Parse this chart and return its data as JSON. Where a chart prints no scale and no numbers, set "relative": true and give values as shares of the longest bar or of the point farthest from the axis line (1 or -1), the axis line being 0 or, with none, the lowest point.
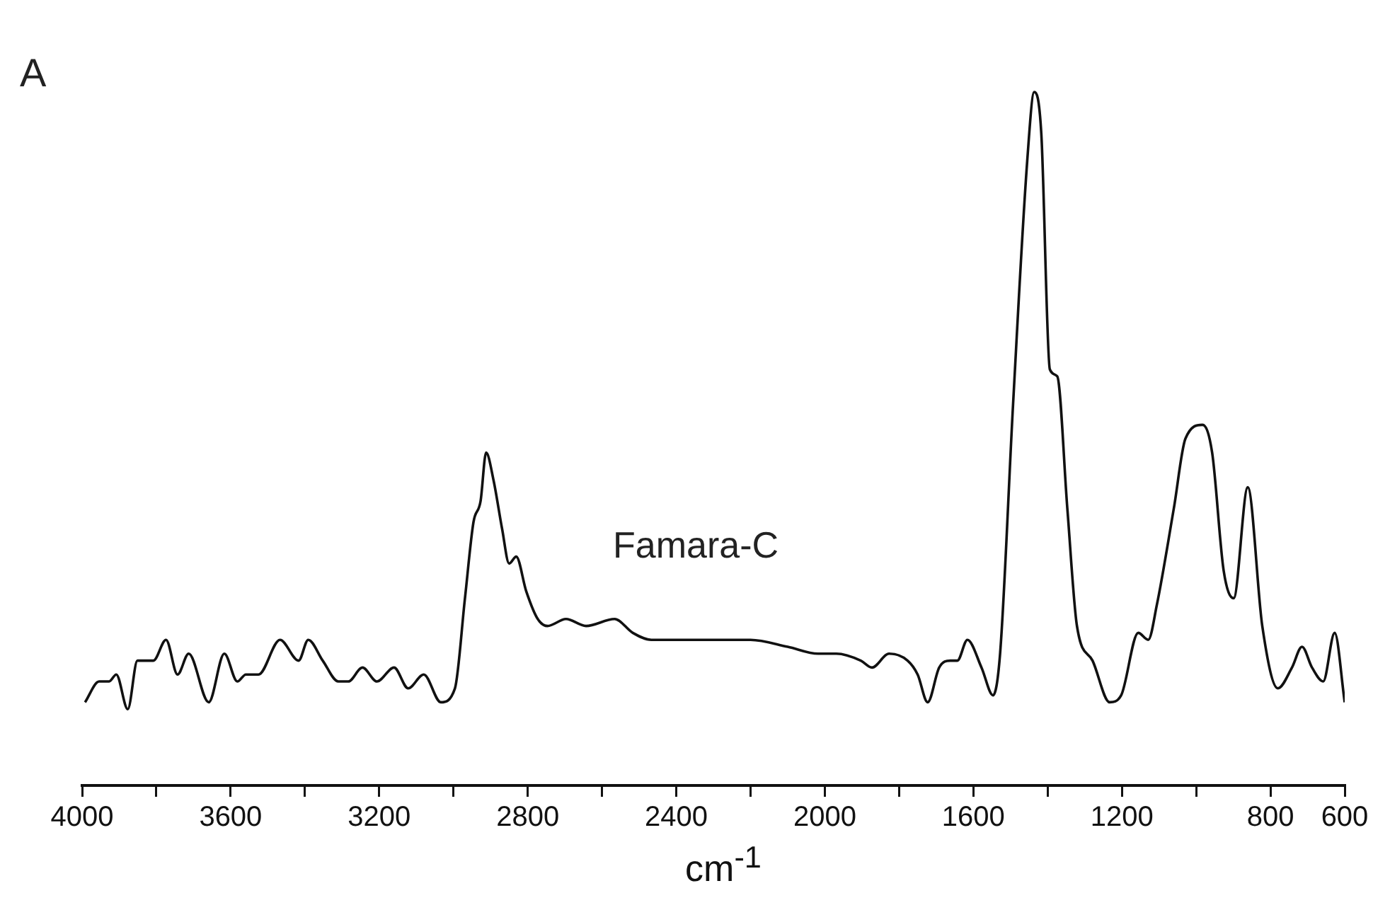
{
  "chart_data": {
    "type": "line",
    "relative": true,
    "xlabel": "cm$^{-1}$",
    "annotations": [
      "A",
      "Famara-C"
    ],
    "xlim": [
      4000,
      600
    ],
    "xticks": [
      4000,
      {
        "value": 3800,
        "label": null
      },
      3600,
      {
        "value": 3400,
        "label": null
      },
      3200,
      {
        "value": 3000,
        "label": null
      },
      2800,
      {
        "value": 2600,
        "label": null
      },
      2400,
      {
        "value": 2200,
        "label": null
      },
      2000,
      {
        "value": 1800,
        "label": null
      },
      1600,
      {
        "value": 1400,
        "label": null
      },
      1200,
      {
        "value": 1000,
        "label": null
      },
      800,
      600
    ],
    "grid": false,
    "marker": "none",
    "line_style": "solid",
    "series": [
      {
        "color": "#111111",
        "x": [
          3992,
          3954,
          3927,
          3908,
          3877,
          3851,
          3808,
          3774,
          3743,
          3713,
          3659,
          3617,
          3582,
          3559,
          3525,
          3467,
          3417,
          3391,
          3352,
          3310,
          3283,
          3245,
          3206,
          3160,
          3122,
          3080,
          3034,
          2996,
          2969,
          2946,
          2927,
          2912,
          2892,
          2869,
          2850,
          2831,
          2804,
          2773,
          2747,
          2697,
          2643,
          2566,
          2517,
          2467,
          2390,
          2344,
          2325,
          2200,
          2100,
          2018,
          1969,
          1903,
          1873,
          1827,
          1777,
          1750,
          1723,
          1692,
          1662,
          1643,
          1616,
          1578,
          1547,
          1528,
          1493,
          1455,
          1436,
          1417,
          1394,
          1374,
          1347,
          1321,
          1279,
          1233,
          1202,
          1156,
          1129,
          1106,
          1060,
          1029,
          983,
          957,
          926,
          899,
          861,
          822,
          780,
          742,
          715,
          688,
          658,
          627,
          600
        ],
        "values": [
          0.12,
          0.15,
          0.15,
          0.16,
          0.11,
          0.18,
          0.18,
          0.21,
          0.16,
          0.19,
          0.12,
          0.19,
          0.15,
          0.16,
          0.16,
          0.21,
          0.18,
          0.21,
          0.18,
          0.15,
          0.15,
          0.17,
          0.15,
          0.17,
          0.14,
          0.16,
          0.12,
          0.14,
          0.27,
          0.38,
          0.41,
          0.48,
          0.44,
          0.37,
          0.32,
          0.33,
          0.28,
          0.24,
          0.23,
          0.24,
          0.23,
          0.24,
          0.22,
          0.21,
          0.21,
          0.21,
          0.21,
          0.21,
          0.2,
          0.19,
          0.19,
          0.18,
          0.17,
          0.19,
          0.18,
          0.16,
          0.12,
          0.17,
          0.18,
          0.18,
          0.21,
          0.17,
          0.13,
          0.19,
          0.55,
          0.9,
          1.0,
          0.94,
          0.6,
          0.59,
          0.4,
          0.23,
          0.18,
          0.12,
          0.13,
          0.22,
          0.21,
          0.26,
          0.4,
          0.5,
          0.52,
          0.48,
          0.31,
          0.27,
          0.43,
          0.23,
          0.14,
          0.17,
          0.2,
          0.17,
          0.15,
          0.22,
          0.12
        ]
      }
    ]
  }
}
